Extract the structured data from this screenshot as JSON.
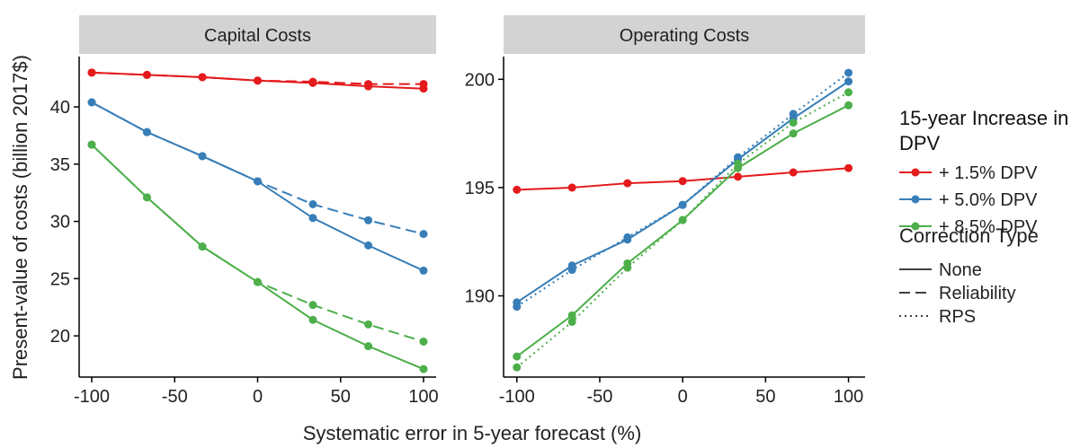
{
  "axis_labels": {
    "x": "Systematic error in 5-year forecast (%)",
    "y": "Present-value of costs (billion 2017$)"
  },
  "legend": {
    "color_title": "15-year Increase in DPV",
    "linetype_title": "Correction Type",
    "linetypes": [
      {
        "name": "None",
        "dash": "none"
      },
      {
        "name": "Reliability",
        "dash": "12 6"
      },
      {
        "name": "RPS",
        "dash": "2 4"
      }
    ]
  },
  "chart_data": [
    {
      "type": "line",
      "title": "Capital Costs",
      "x": [
        -100,
        -66.7,
        -33.3,
        0,
        33.3,
        66.7,
        100
      ],
      "xlim": [
        -107.6,
        107.6
      ],
      "xticks": [
        -100,
        -50,
        0,
        50,
        100
      ],
      "ylim": [
        16.4,
        44.4
      ],
      "yticks": [
        20,
        25,
        30,
        35,
        40
      ],
      "series": [
        {
          "name": "+ 1.5% DPV",
          "linetype": "None",
          "color": "#e41a1c",
          "values": [
            43.0,
            42.8,
            42.6,
            42.3,
            42.1,
            41.8,
            41.6
          ]
        },
        {
          "name": "+ 1.5% DPV",
          "linetype": "Reliability",
          "color": "#e41a1c",
          "values": [
            43.0,
            42.8,
            42.6,
            42.3,
            42.2,
            42.0,
            42.0
          ]
        },
        {
          "name": "+ 5.0% DPV",
          "linetype": "None",
          "color": "#377eb8",
          "values": [
            40.4,
            37.8,
            35.7,
            33.5,
            30.3,
            27.9,
            25.7
          ]
        },
        {
          "name": "+ 5.0% DPV",
          "linetype": "Reliability",
          "color": "#377eb8",
          "values": [
            40.4,
            37.8,
            35.7,
            33.5,
            31.5,
            30.1,
            28.9
          ]
        },
        {
          "name": "+ 8.5% DPV",
          "linetype": "None",
          "color": "#4daf4a",
          "values": [
            36.7,
            32.1,
            27.8,
            24.7,
            21.4,
            19.1,
            17.1
          ]
        },
        {
          "name": "+ 8.5% DPV",
          "linetype": "Reliability",
          "color": "#4daf4a",
          "values": [
            36.7,
            32.1,
            27.8,
            24.7,
            22.7,
            21.0,
            19.5
          ]
        }
      ]
    },
    {
      "type": "line",
      "title": "Operating Costs",
      "x": [
        -100,
        -66.7,
        -33.3,
        0,
        33.3,
        66.7,
        100
      ],
      "xlim": [
        -108,
        110
      ],
      "xticks": [
        -100,
        -50,
        0,
        50,
        100
      ],
      "ylim": [
        186.25,
        201.05
      ],
      "yticks": [
        190,
        195,
        200
      ],
      "series": [
        {
          "name": "+ 1.5% DPV",
          "linetype": "None",
          "color": "#e41a1c",
          "values": [
            194.9,
            195.0,
            195.2,
            195.3,
            195.5,
            195.7,
            195.9
          ]
        },
        {
          "name": "+ 5.0% DPV",
          "linetype": "None",
          "color": "#377eb8",
          "values": [
            189.7,
            191.4,
            192.6,
            194.2,
            196.3,
            198.2,
            199.9
          ]
        },
        {
          "name": "+ 5.0% DPV",
          "linetype": "RPS",
          "color": "#377eb8",
          "values": [
            189.5,
            191.2,
            192.7,
            194.2,
            196.4,
            198.4,
            200.3
          ]
        },
        {
          "name": "+ 8.5% DPV",
          "linetype": "None",
          "color": "#4daf4a",
          "values": [
            187.2,
            189.1,
            191.5,
            193.5,
            195.9,
            197.5,
            198.8
          ]
        },
        {
          "name": "+ 8.5% DPV",
          "linetype": "RPS",
          "color": "#4daf4a",
          "values": [
            186.7,
            188.8,
            191.3,
            193.5,
            196.1,
            198.0,
            199.4
          ]
        }
      ]
    }
  ]
}
